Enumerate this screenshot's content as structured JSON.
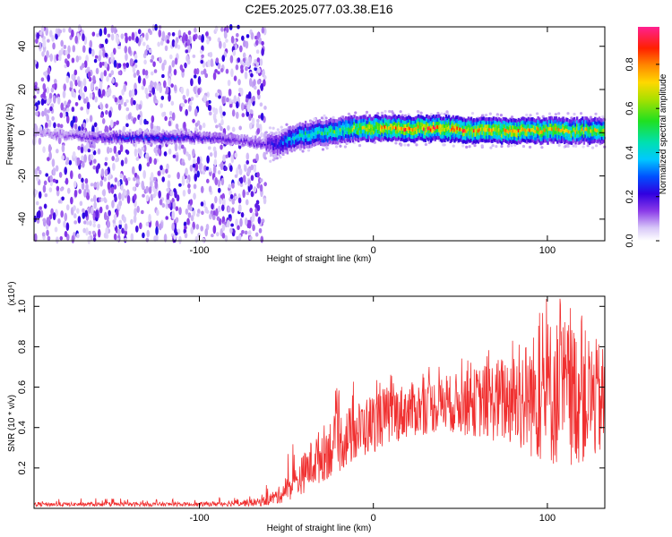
{
  "title": "C2E5.2025.077.03.38.E16",
  "colorbar": {
    "label": "Normalized spectral amplitude",
    "ticks": [
      0.0,
      0.2,
      0.4,
      0.6,
      0.8
    ],
    "tick_labels": [
      "0.0",
      "0.2",
      "0.4",
      "0.6",
      "0.8"
    ],
    "range": [
      0,
      0.97
    ]
  },
  "chart_data": [
    {
      "type": "heatmap",
      "xlabel": "Height of straight line (km)",
      "ylabel": "Frequency (Hz)",
      "xlim": [
        -195,
        133
      ],
      "ylim": [
        -50,
        49
      ],
      "xticks": [
        -100,
        0,
        100
      ],
      "xtick_labels": [
        "-100",
        "0",
        "100"
      ],
      "yticks": [
        -40,
        -20,
        0,
        20,
        40
      ],
      "ytick_labels": [
        "-40",
        "-20",
        "0",
        "20",
        "40"
      ],
      "noise_region_x": [
        -195,
        -62
      ],
      "ridge": {
        "x": [
          -195,
          -160,
          -140,
          -120,
          -100,
          -80,
          -62,
          -55,
          -50,
          -45,
          -40,
          -30,
          -20,
          -10,
          0,
          20,
          40,
          60,
          80,
          100,
          120,
          133
        ],
        "freq_hz": [
          0,
          -2,
          -2,
          -2,
          -2,
          -3,
          -5,
          -6,
          -4,
          -2,
          -1,
          0,
          1,
          2,
          2,
          2,
          2,
          1,
          1,
          1,
          1,
          1
        ],
        "amplitude": [
          0.1,
          0.2,
          0.3,
          0.3,
          0.25,
          0.2,
          0.2,
          0.3,
          0.4,
          0.45,
          0.5,
          0.55,
          0.6,
          0.7,
          0.8,
          0.9,
          0.9,
          0.85,
          0.85,
          0.8,
          0.75,
          0.7
        ]
      }
    },
    {
      "type": "line",
      "xlabel": "Height of straight line (km)",
      "ylabel": "SNR (10 * v/v)",
      "yscale_label": "(x10⁴)",
      "xlim": [
        -195,
        133
      ],
      "ylim": [
        0,
        1.05
      ],
      "xticks": [
        -100,
        0,
        100
      ],
      "xtick_labels": [
        "-100",
        "0",
        "100"
      ],
      "yticks": [
        0.2,
        0.4,
        0.6,
        0.8,
        1.0
      ],
      "ytick_labels": [
        "0.2",
        "0.4",
        "0.6",
        "0.8",
        "1.0"
      ],
      "color": "#f03030",
      "envelope": {
        "x": [
          -195,
          -100,
          -65,
          -55,
          -45,
          -35,
          -25,
          -15,
          -5,
          5,
          20,
          40,
          60,
          80,
          90,
          100,
          110,
          120,
          133
        ],
        "low": [
          0.01,
          0.01,
          0.01,
          0.02,
          0.05,
          0.1,
          0.15,
          0.2,
          0.25,
          0.3,
          0.35,
          0.38,
          0.35,
          0.3,
          0.25,
          0.2,
          0.2,
          0.22,
          0.25
        ],
        "high": [
          0.03,
          0.03,
          0.05,
          0.1,
          0.2,
          0.35,
          0.45,
          0.5,
          0.55,
          0.6,
          0.62,
          0.65,
          0.7,
          0.78,
          0.85,
          0.95,
          0.95,
          0.9,
          0.8
        ],
        "spike_max": [
          0.05,
          0.05,
          0.07,
          0.2,
          0.35,
          0.58,
          0.6,
          0.62,
          0.64,
          0.68,
          0.7,
          0.72,
          0.78,
          0.85,
          0.9,
          1.05,
          1.05,
          1.0,
          0.85
        ]
      }
    }
  ]
}
